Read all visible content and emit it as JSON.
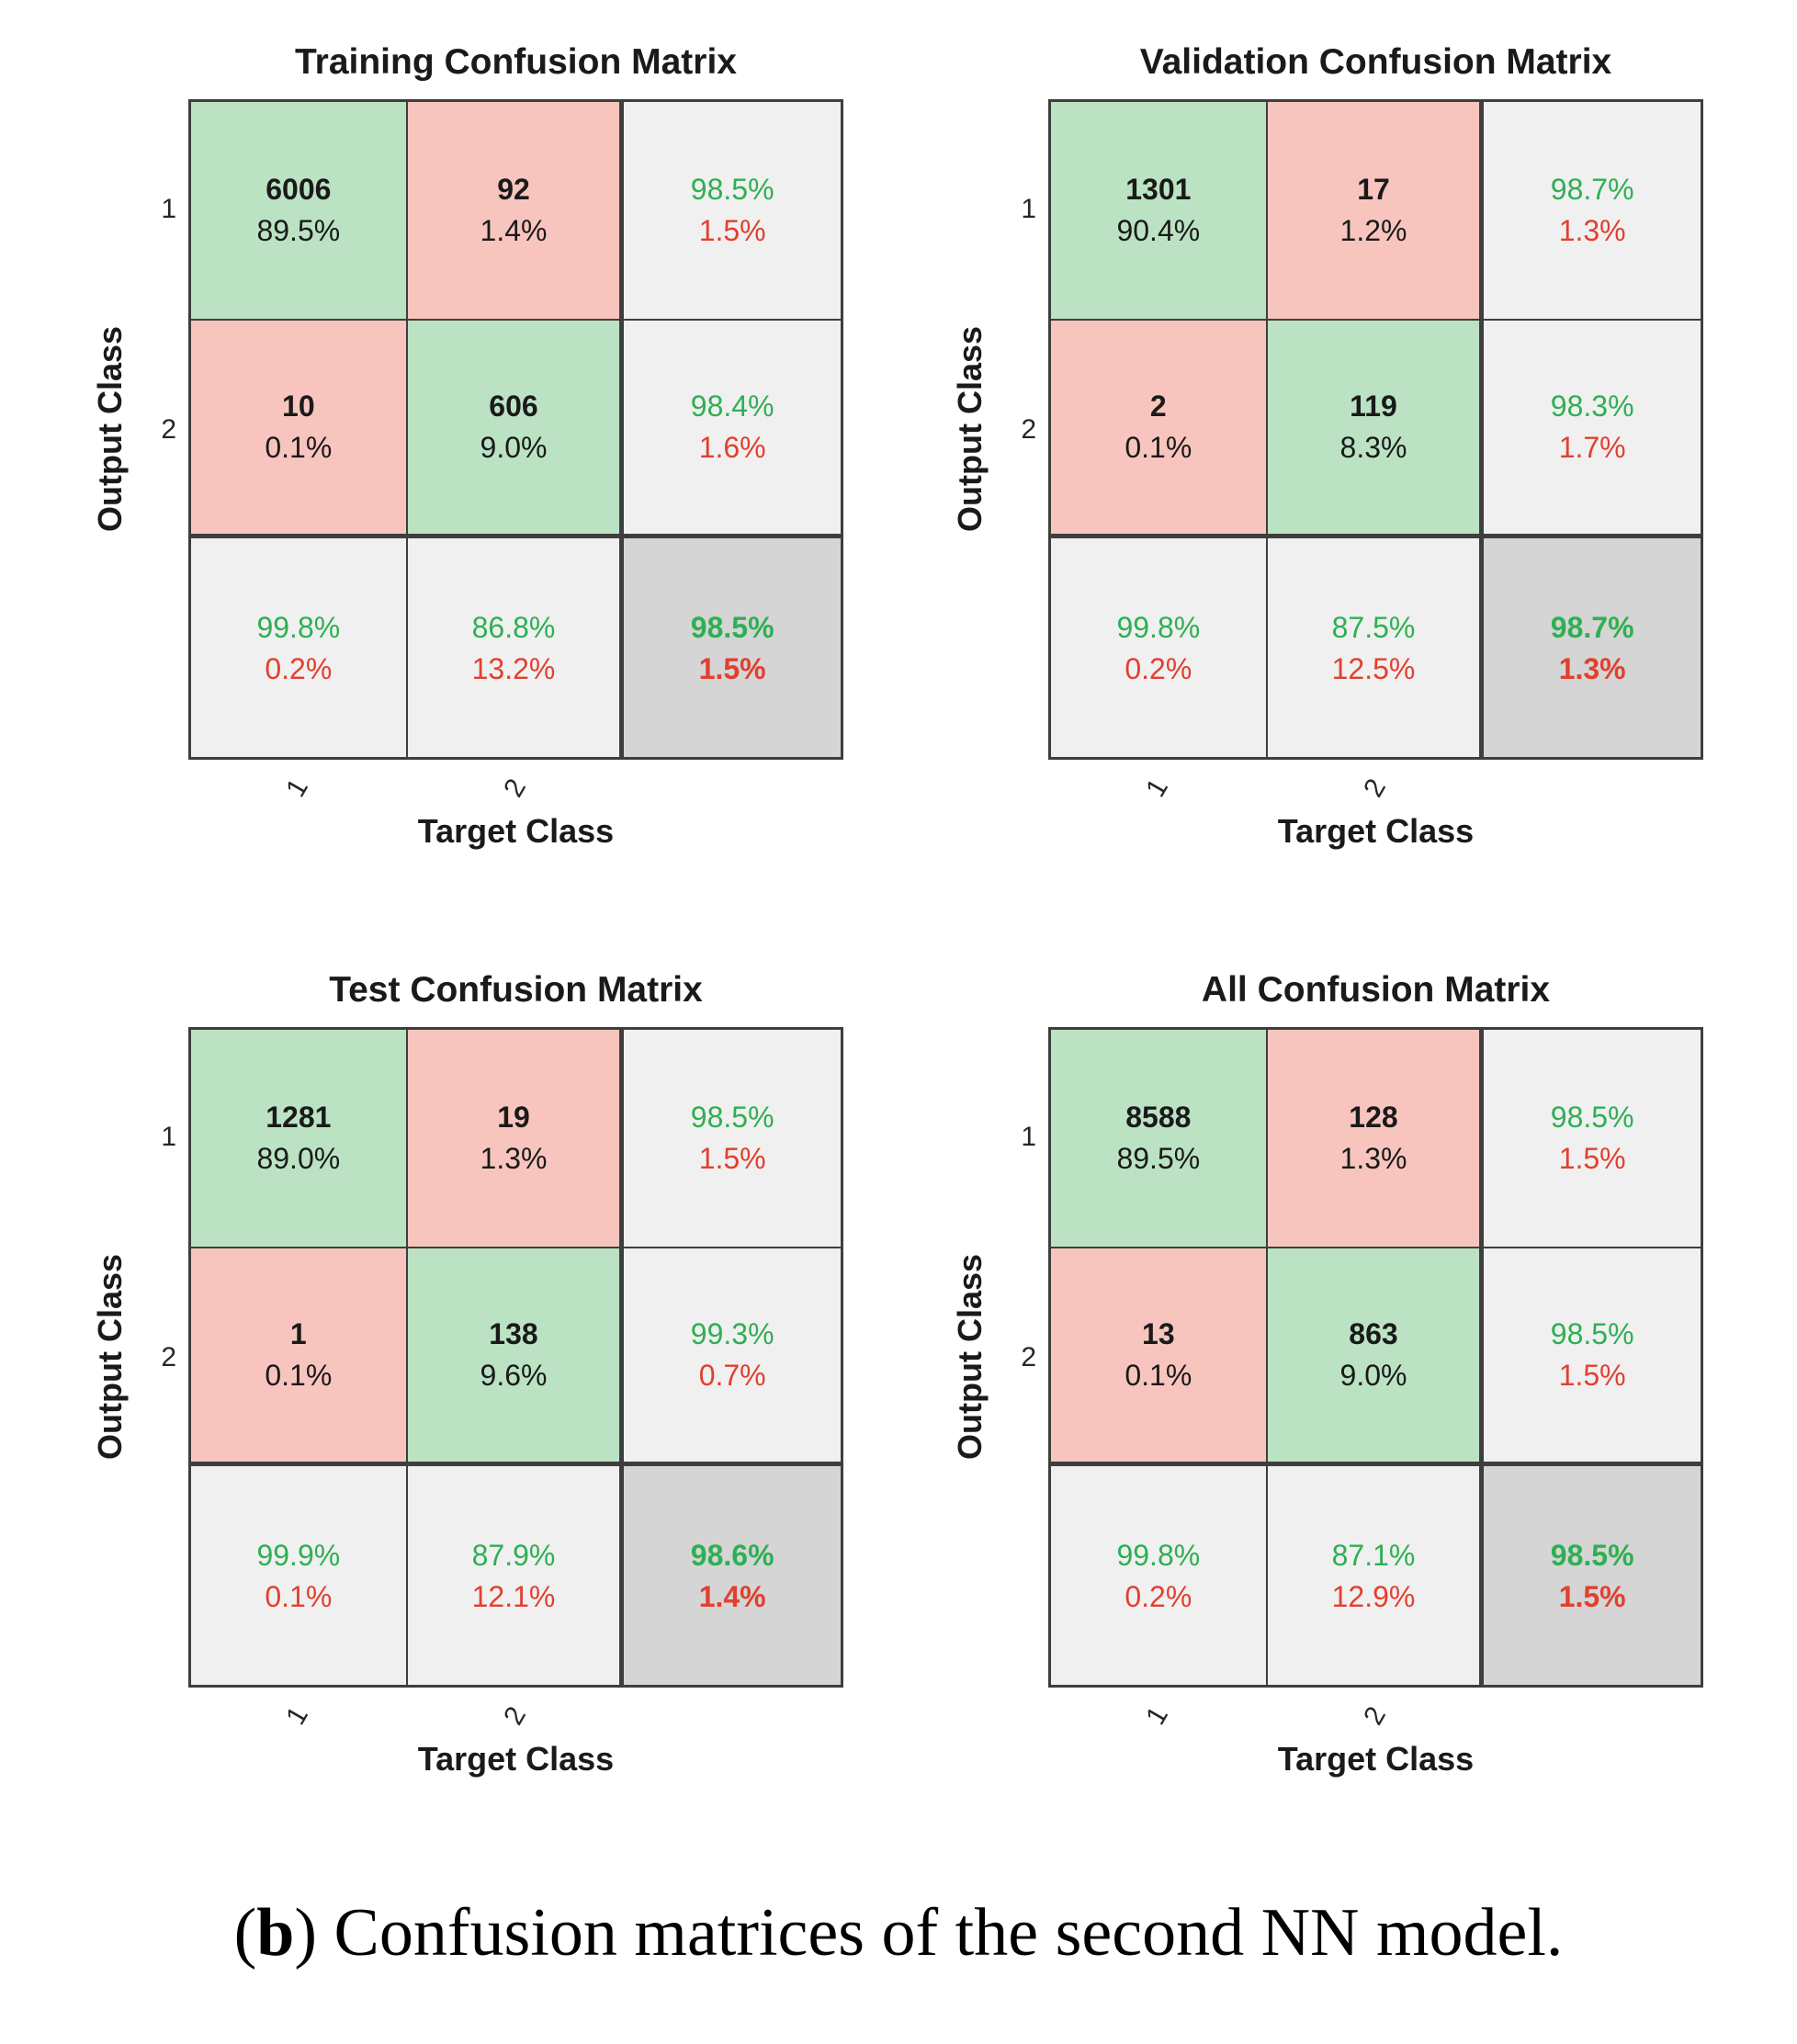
{
  "colors": {
    "diagonal_fill": "#BBE3C3",
    "off_diagonal_fill": "#F8C5BE",
    "summary_fill": "#F0F0F0",
    "corner_fill": "#D5D5D5",
    "grid_line": "#3E3E3E",
    "positive_text_green": "#2FAF53",
    "negative_text_red": "#E2402F"
  },
  "chart_data": [
    {
      "type": "heatmap",
      "title": "Training Confusion Matrix",
      "xlabel": "Target Class",
      "ylabel": "Output Class",
      "classes": [
        "1",
        "2"
      ],
      "counts": [
        [
          6006,
          92
        ],
        [
          10,
          606
        ]
      ],
      "cell_pct": [
        [
          "89.5%",
          "1.4%"
        ],
        [
          "0.1%",
          "9.0%"
        ]
      ],
      "row_summary": [
        [
          "98.5%",
          "1.5%"
        ],
        [
          "98.4%",
          "1.6%"
        ]
      ],
      "col_summary": [
        [
          "99.8%",
          "0.2%"
        ],
        [
          "86.8%",
          "13.2%"
        ]
      ],
      "overall": [
        "98.5%",
        "1.5%"
      ]
    },
    {
      "type": "heatmap",
      "title": "Validation Confusion Matrix",
      "xlabel": "Target Class",
      "ylabel": "Output Class",
      "classes": [
        "1",
        "2"
      ],
      "counts": [
        [
          1301,
          17
        ],
        [
          2,
          119
        ]
      ],
      "cell_pct": [
        [
          "90.4%",
          "1.2%"
        ],
        [
          "0.1%",
          "8.3%"
        ]
      ],
      "row_summary": [
        [
          "98.7%",
          "1.3%"
        ],
        [
          "98.3%",
          "1.7%"
        ]
      ],
      "col_summary": [
        [
          "99.8%",
          "0.2%"
        ],
        [
          "87.5%",
          "12.5%"
        ]
      ],
      "overall": [
        "98.7%",
        "1.3%"
      ]
    },
    {
      "type": "heatmap",
      "title": "Test Confusion Matrix",
      "xlabel": "Target Class",
      "ylabel": "Output Class",
      "classes": [
        "1",
        "2"
      ],
      "counts": [
        [
          1281,
          19
        ],
        [
          1,
          138
        ]
      ],
      "cell_pct": [
        [
          "89.0%",
          "1.3%"
        ],
        [
          "0.1%",
          "9.6%"
        ]
      ],
      "row_summary": [
        [
          "98.5%",
          "1.5%"
        ],
        [
          "99.3%",
          "0.7%"
        ]
      ],
      "col_summary": [
        [
          "99.9%",
          "0.1%"
        ],
        [
          "87.9%",
          "12.1%"
        ]
      ],
      "overall": [
        "98.6%",
        "1.4%"
      ]
    },
    {
      "type": "heatmap",
      "title": "All Confusion Matrix",
      "xlabel": "Target Class",
      "ylabel": "Output Class",
      "classes": [
        "1",
        "2"
      ],
      "counts": [
        [
          8588,
          128
        ],
        [
          13,
          863
        ]
      ],
      "cell_pct": [
        [
          "89.5%",
          "1.3%"
        ],
        [
          "0.1%",
          "9.0%"
        ]
      ],
      "row_summary": [
        [
          "98.5%",
          "1.5%"
        ],
        [
          "98.5%",
          "1.5%"
        ]
      ],
      "col_summary": [
        [
          "99.8%",
          "0.2%"
        ],
        [
          "87.1%",
          "12.9%"
        ]
      ],
      "overall": [
        "98.5%",
        "1.5%"
      ]
    }
  ],
  "caption": {
    "open": "(",
    "b": "b",
    "close": ")",
    "text": "Confusion matrices of the second NN model."
  }
}
